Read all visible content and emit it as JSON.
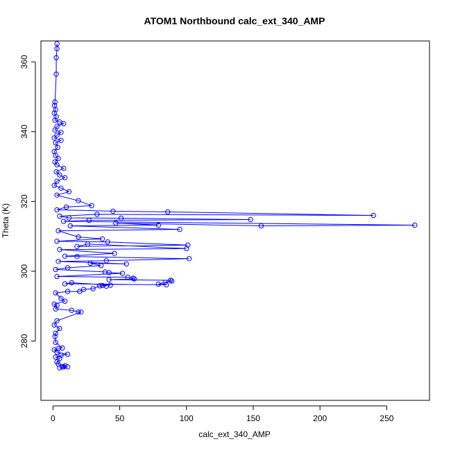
{
  "chart_data": {
    "type": "scatter",
    "title": "ATOM1 Northbound calc_ext_340_AMP",
    "xlabel": "calc_ext_340_AMP",
    "ylabel": "Theta (K)",
    "xlim": [
      -9,
      282
    ],
    "ylim": [
      263,
      366
    ],
    "xticks": [
      0,
      50,
      100,
      150,
      200,
      250
    ],
    "yticks": [
      280,
      300,
      320,
      340,
      360
    ],
    "grid": false,
    "legend": "none",
    "color": "#0000ff",
    "marker": "open-circle",
    "connected_by_lines": true,
    "series": [
      {
        "values": [
          [
            3,
            365.2
          ],
          [
            3,
            363.8
          ],
          [
            2.5,
            361.2
          ],
          [
            2.5,
            356.5
          ],
          [
            1.5,
            348.5
          ],
          [
            1.2,
            347.5
          ],
          [
            2,
            346.3
          ],
          [
            1,
            345.3
          ],
          [
            2.5,
            344.3
          ],
          [
            1.5,
            343.3
          ],
          [
            5,
            342.8
          ],
          [
            8,
            342.3
          ],
          [
            3,
            341.5
          ],
          [
            1.5,
            340.5
          ],
          [
            6,
            339.8
          ],
          [
            3,
            339
          ],
          [
            1,
            338.2
          ],
          [
            6,
            337.5
          ],
          [
            2,
            336.8
          ],
          [
            3.5,
            335.5
          ],
          [
            1,
            334.3
          ],
          [
            2,
            333.2
          ],
          [
            4,
            332.3
          ],
          [
            1.5,
            331.3
          ],
          [
            3,
            330.5
          ],
          [
            8,
            329.5
          ],
          [
            2.5,
            328.5
          ],
          [
            5,
            327.6
          ],
          [
            9,
            326.8
          ],
          [
            3,
            325.8
          ],
          [
            1,
            324.6
          ],
          [
            6,
            323.8
          ],
          [
            12,
            322.8
          ],
          [
            3,
            321.8
          ],
          [
            19,
            320.2
          ],
          [
            29,
            318.8
          ],
          [
            10,
            318.4
          ],
          [
            3,
            317.6
          ],
          [
            45,
            317.2
          ],
          [
            86,
            317
          ],
          [
            240,
            316
          ],
          [
            33,
            316.3
          ],
          [
            5,
            315.8
          ],
          [
            12,
            315.3
          ],
          [
            51,
            315.2
          ],
          [
            148,
            314.8
          ],
          [
            27,
            314.6
          ],
          [
            8,
            314.3
          ],
          [
            271,
            313.2
          ],
          [
            156,
            313
          ],
          [
            47,
            313.8
          ],
          [
            79,
            313.2
          ],
          [
            13,
            313
          ],
          [
            95,
            312
          ],
          [
            4,
            311.6
          ],
          [
            19,
            309.8
          ],
          [
            37,
            309.3
          ],
          [
            3,
            308.6
          ],
          [
            41,
            308.4
          ],
          [
            101,
            307.5
          ],
          [
            18,
            307.1
          ],
          [
            26,
            307.8
          ],
          [
            100,
            306.5
          ],
          [
            5,
            306.2
          ],
          [
            46,
            305.1
          ],
          [
            9,
            304.3
          ],
          [
            18,
            304.2
          ],
          [
            102,
            303.6
          ],
          [
            40,
            303
          ],
          [
            4,
            302.8
          ],
          [
            55,
            302.1
          ],
          [
            28,
            302.3
          ],
          [
            36,
            301.6
          ],
          [
            11,
            301
          ],
          [
            2,
            300.5
          ],
          [
            39,
            299.8
          ],
          [
            42,
            299.6
          ],
          [
            52,
            299.4
          ],
          [
            3,
            298.5
          ],
          [
            56,
            298.3
          ],
          [
            60,
            298
          ],
          [
            61,
            297.8
          ],
          [
            42,
            297.6
          ],
          [
            88,
            297.4
          ],
          [
            89,
            297.2
          ],
          [
            84,
            296.8
          ],
          [
            79,
            296.3
          ],
          [
            85,
            296.1
          ],
          [
            9,
            296.4
          ],
          [
            14,
            296.7
          ],
          [
            43,
            296
          ],
          [
            37,
            295.9
          ],
          [
            40,
            295.7
          ],
          [
            35,
            295.8
          ],
          [
            30,
            295
          ],
          [
            23,
            294.8
          ],
          [
            20,
            294.2
          ],
          [
            11,
            294.2
          ],
          [
            2,
            293.8
          ],
          [
            6,
            292.2
          ],
          [
            9,
            291.4
          ],
          [
            1,
            290.6
          ],
          [
            3,
            290.2
          ],
          [
            2,
            289.2
          ],
          [
            14,
            288.8
          ],
          [
            19,
            288.3
          ],
          [
            21,
            288.3
          ],
          [
            3,
            285.8
          ],
          [
            1,
            284.6
          ],
          [
            5,
            283.6
          ],
          [
            2,
            282.2
          ],
          [
            1.5,
            281.3
          ],
          [
            2,
            279.6
          ],
          [
            7,
            278
          ],
          [
            4,
            277.8
          ],
          [
            1,
            277.5
          ],
          [
            3,
            276.8
          ],
          [
            11,
            276.2
          ],
          [
            6,
            275.9
          ],
          [
            2,
            275.4
          ],
          [
            5,
            275
          ],
          [
            3,
            274
          ],
          [
            4,
            273.4
          ],
          [
            9,
            272.9
          ],
          [
            7,
            272.6
          ],
          [
            11,
            272.6
          ],
          [
            5,
            272.3
          ],
          [
            8,
            272.6
          ]
        ]
      }
    ]
  }
}
